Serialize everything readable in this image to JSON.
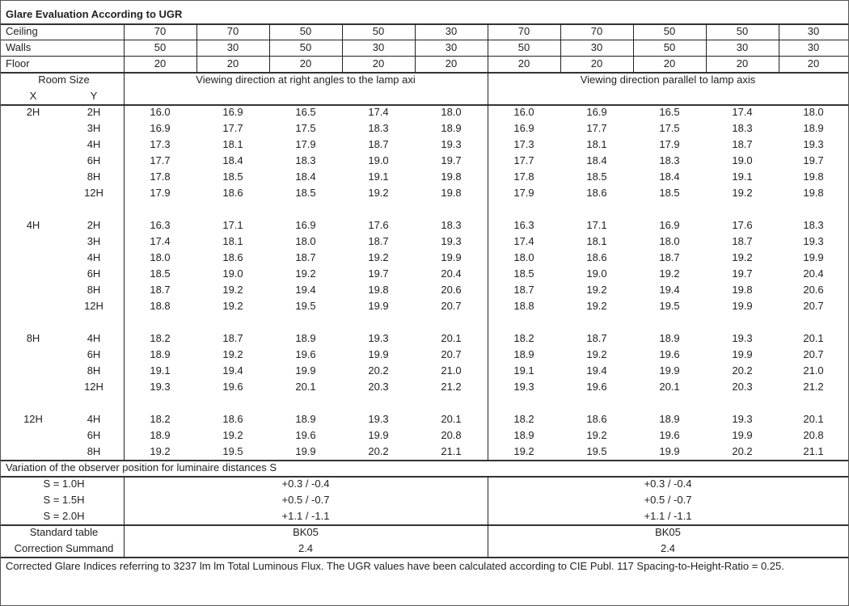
{
  "title": "Glare Evaluation According to UGR",
  "reflectances": [
    {
      "label": "Ceiling",
      "values": [
        "70",
        "70",
        "50",
        "50",
        "30",
        "70",
        "70",
        "50",
        "50",
        "30"
      ]
    },
    {
      "label": "Walls",
      "values": [
        "50",
        "30",
        "50",
        "30",
        "30",
        "50",
        "30",
        "50",
        "30",
        "30"
      ]
    },
    {
      "label": "Floor",
      "values": [
        "20",
        "20",
        "20",
        "20",
        "20",
        "20",
        "20",
        "20",
        "20",
        "20"
      ]
    }
  ],
  "header": {
    "room_size": "Room Size",
    "x": "X",
    "y": "Y",
    "perpendicular": "Viewing direction at right angles to the lamp axi",
    "parallel": "Viewing direction parallel to lamp axis"
  },
  "groups": [
    {
      "x": "2H",
      "rows": [
        {
          "y": "2H",
          "perp": [
            "16.0",
            "16.9",
            "16.5",
            "17.4",
            "18.0"
          ],
          "par": [
            "16.0",
            "16.9",
            "16.5",
            "17.4",
            "18.0"
          ]
        },
        {
          "y": "3H",
          "perp": [
            "16.9",
            "17.7",
            "17.5",
            "18.3",
            "18.9"
          ],
          "par": [
            "16.9",
            "17.7",
            "17.5",
            "18.3",
            "18.9"
          ]
        },
        {
          "y": "4H",
          "perp": [
            "17.3",
            "18.1",
            "17.9",
            "18.7",
            "19.3"
          ],
          "par": [
            "17.3",
            "18.1",
            "17.9",
            "18.7",
            "19.3"
          ]
        },
        {
          "y": "6H",
          "perp": [
            "17.7",
            "18.4",
            "18.3",
            "19.0",
            "19.7"
          ],
          "par": [
            "17.7",
            "18.4",
            "18.3",
            "19.0",
            "19.7"
          ]
        },
        {
          "y": "8H",
          "perp": [
            "17.8",
            "18.5",
            "18.4",
            "19.1",
            "19.8"
          ],
          "par": [
            "17.8",
            "18.5",
            "18.4",
            "19.1",
            "19.8"
          ]
        },
        {
          "y": "12H",
          "perp": [
            "17.9",
            "18.6",
            "18.5",
            "19.2",
            "19.8"
          ],
          "par": [
            "17.9",
            "18.6",
            "18.5",
            "19.2",
            "19.8"
          ]
        }
      ]
    },
    {
      "x": "4H",
      "rows": [
        {
          "y": "2H",
          "perp": [
            "16.3",
            "17.1",
            "16.9",
            "17.6",
            "18.3"
          ],
          "par": [
            "16.3",
            "17.1",
            "16.9",
            "17.6",
            "18.3"
          ]
        },
        {
          "y": "3H",
          "perp": [
            "17.4",
            "18.1",
            "18.0",
            "18.7",
            "19.3"
          ],
          "par": [
            "17.4",
            "18.1",
            "18.0",
            "18.7",
            "19.3"
          ]
        },
        {
          "y": "4H",
          "perp": [
            "18.0",
            "18.6",
            "18.7",
            "19.2",
            "19.9"
          ],
          "par": [
            "18.0",
            "18.6",
            "18.7",
            "19.2",
            "19.9"
          ]
        },
        {
          "y": "6H",
          "perp": [
            "18.5",
            "19.0",
            "19.2",
            "19.7",
            "20.4"
          ],
          "par": [
            "18.5",
            "19.0",
            "19.2",
            "19.7",
            "20.4"
          ]
        },
        {
          "y": "8H",
          "perp": [
            "18.7",
            "19.2",
            "19.4",
            "19.8",
            "20.6"
          ],
          "par": [
            "18.7",
            "19.2",
            "19.4",
            "19.8",
            "20.6"
          ]
        },
        {
          "y": "12H",
          "perp": [
            "18.8",
            "19.2",
            "19.5",
            "19.9",
            "20.7"
          ],
          "par": [
            "18.8",
            "19.2",
            "19.5",
            "19.9",
            "20.7"
          ]
        }
      ]
    },
    {
      "x": "8H",
      "rows": [
        {
          "y": "4H",
          "perp": [
            "18.2",
            "18.7",
            "18.9",
            "19.3",
            "20.1"
          ],
          "par": [
            "18.2",
            "18.7",
            "18.9",
            "19.3",
            "20.1"
          ]
        },
        {
          "y": "6H",
          "perp": [
            "18.9",
            "19.2",
            "19.6",
            "19.9",
            "20.7"
          ],
          "par": [
            "18.9",
            "19.2",
            "19.6",
            "19.9",
            "20.7"
          ]
        },
        {
          "y": "8H",
          "perp": [
            "19.1",
            "19.4",
            "19.9",
            "20.2",
            "21.0"
          ],
          "par": [
            "19.1",
            "19.4",
            "19.9",
            "20.2",
            "21.0"
          ]
        },
        {
          "y": "12H",
          "perp": [
            "19.3",
            "19.6",
            "20.1",
            "20.3",
            "21.2"
          ],
          "par": [
            "19.3",
            "19.6",
            "20.1",
            "20.3",
            "21.2"
          ]
        }
      ]
    },
    {
      "x": "12H",
      "rows": [
        {
          "y": "4H",
          "perp": [
            "18.2",
            "18.6",
            "18.9",
            "19.3",
            "20.1"
          ],
          "par": [
            "18.2",
            "18.6",
            "18.9",
            "19.3",
            "20.1"
          ]
        },
        {
          "y": "6H",
          "perp": [
            "18.9",
            "19.2",
            "19.6",
            "19.9",
            "20.8"
          ],
          "par": [
            "18.9",
            "19.2",
            "19.6",
            "19.9",
            "20.8"
          ]
        },
        {
          "y": "8H",
          "perp": [
            "19.2",
            "19.5",
            "19.9",
            "20.2",
            "21.1"
          ],
          "par": [
            "19.2",
            "19.5",
            "19.9",
            "20.2",
            "21.1"
          ]
        }
      ]
    }
  ],
  "variation": {
    "title": "Variation of the observer position for luminaire distances S",
    "rows": [
      {
        "label": "S = 1.0H",
        "perp": "+0.3 / -0.4",
        "par": "+0.3 / -0.4"
      },
      {
        "label": "S = 1.5H",
        "perp": "+0.5 / -0.7",
        "par": "+0.5 / -0.7"
      },
      {
        "label": "S = 2.0H",
        "perp": "+1.1 / -1.1",
        "par": "+1.1 / -1.1"
      }
    ]
  },
  "standard": [
    {
      "label": "Standard table",
      "perp": "BK05",
      "par": "BK05"
    },
    {
      "label": "Correction Summand",
      "perp": "2.4",
      "par": "2.4"
    }
  ],
  "footer": "Corrected Glare Indices referring to 3237 lm lm Total Luminous Flux. The UGR values have been calculated according to CIE Publ. 117    Spacing-to-Height-Ratio = 0.25."
}
